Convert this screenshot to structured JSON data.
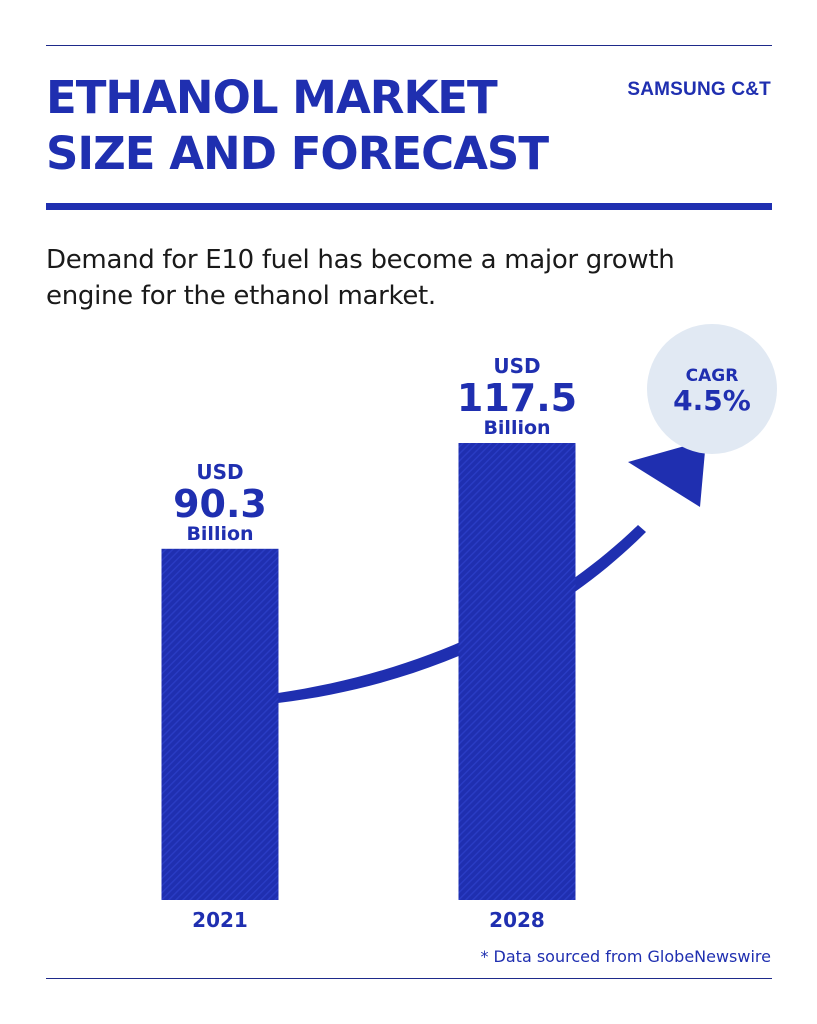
{
  "brand": "SAMSUNG C&T",
  "title": "ETHANOL MARKET\nSIZE AND FORECAST",
  "subtitle": "Demand for E10 fuel has become a major growth engine for the ethanol market.",
  "source_note": "* Data sourced from GlobeNewswire",
  "colors": {
    "primary": "#1f2fb0",
    "bar_stripe": "#2a3cc4",
    "badge_bg": "#e1e9f3"
  },
  "cagr": {
    "label": "CAGR",
    "value": "4.5%"
  },
  "chart_data": {
    "type": "bar",
    "title": "ETHANOL MARKET SIZE AND FORECAST",
    "categories": [
      "2021",
      "2028"
    ],
    "values": [
      90.3,
      117.5
    ],
    "unit_prefix": "USD",
    "unit_suffix": "Billion",
    "data_labels": [
      "90.3",
      "117.5"
    ],
    "xlabel": "",
    "ylabel": "",
    "grid": false,
    "growth_arrow": true
  }
}
